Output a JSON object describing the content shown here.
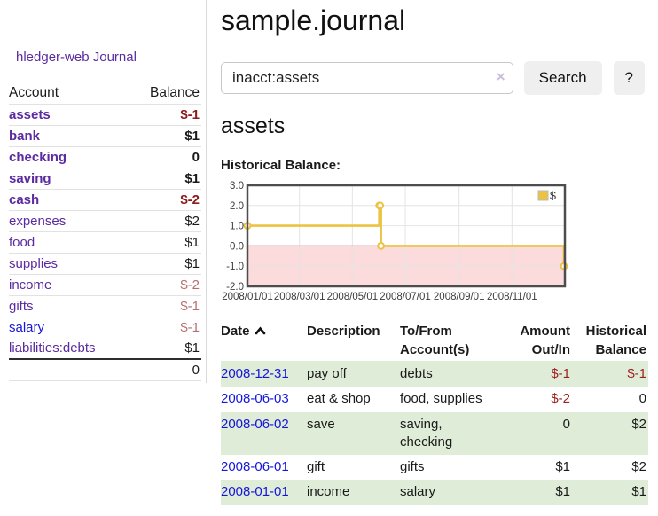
{
  "sidebar": {
    "app_title": "hledger-web",
    "nav": {
      "journal": "Journal"
    },
    "accounts_table": {
      "headers": {
        "account": "Account",
        "balance": "Balance"
      },
      "rows": [
        {
          "name": "assets",
          "indent": 1,
          "bold": true,
          "balance": "$-1",
          "color": "purple"
        },
        {
          "name": "bank",
          "indent": 2,
          "bold": true,
          "balance": "$1",
          "color": "purple"
        },
        {
          "name": "checking",
          "indent": 3,
          "bold": true,
          "balance": "0",
          "color": "purple"
        },
        {
          "name": "saving",
          "indent": 3,
          "bold": true,
          "balance": "$1",
          "color": "purple"
        },
        {
          "name": "cash",
          "indent": 2,
          "bold": true,
          "balance": "$-2",
          "color": "purple"
        },
        {
          "name": "expenses",
          "indent": 1,
          "bold": false,
          "balance": "$2",
          "color": "purple"
        },
        {
          "name": "food",
          "indent": 2,
          "bold": false,
          "balance": "$1",
          "color": "purple"
        },
        {
          "name": "supplies",
          "indent": 2,
          "bold": false,
          "balance": "$1",
          "color": "purple"
        },
        {
          "name": "income",
          "indent": 1,
          "bold": false,
          "balance": "$-2",
          "color": "purple"
        },
        {
          "name": "gifts",
          "indent": 2,
          "bold": false,
          "balance": "$-1",
          "color": "purple"
        },
        {
          "name": "salary",
          "indent": 2,
          "bold": false,
          "balance": "$-1",
          "color": "blue"
        },
        {
          "name": "liabilities:debts",
          "indent": 1,
          "bold": false,
          "balance": "$1",
          "color": "purple"
        }
      ],
      "total": "0"
    }
  },
  "header": {
    "title": "sample.journal"
  },
  "search": {
    "query": "inacct:assets",
    "clear_icon": "×",
    "button_label": "Search",
    "help_label": "?"
  },
  "account_page": {
    "heading": "assets",
    "chart_label": "Historical Balance:"
  },
  "chart_data": {
    "type": "line",
    "title": "Historical Balance",
    "legend": "$",
    "legend_position": "top-right",
    "grid": true,
    "series": [
      {
        "name": "$",
        "color": "#edc240",
        "step": true,
        "points": [
          {
            "date": "2008-01-01",
            "value": 1
          },
          {
            "date": "2008-06-01",
            "value": 2
          },
          {
            "date": "2008-06-02",
            "value": 2
          },
          {
            "date": "2008-06-03",
            "value": 0
          },
          {
            "date": "2008-12-31",
            "value": -1
          }
        ]
      }
    ],
    "x_ticks": [
      "2008/01/01",
      "2008/03/01",
      "2008/05/01",
      "2008/07/01",
      "2008/09/01",
      "2008/11/01"
    ],
    "y_ticks": [
      3.0,
      2.0,
      1.0,
      0.0,
      -1.0,
      -2.0
    ],
    "ylim": [
      -2,
      3
    ],
    "xlim": [
      "2008-01-01",
      "2009-01-01"
    ],
    "negative_region_color": "#fbdbdb",
    "zero_line_color": "#8b0000"
  },
  "register": {
    "headers": {
      "date": {
        "line1": "Date"
      },
      "description": {
        "line1": "Description"
      },
      "account": {
        "line1": "To/From",
        "line2": "Account(s)"
      },
      "amount": {
        "line1": "Amount",
        "line2": "Out/In"
      },
      "balance": {
        "line1": "Historical",
        "line2": "Balance"
      }
    },
    "rows": [
      {
        "date": "2008-12-31",
        "description": "pay off",
        "accounts": "debts",
        "amount": "$-1",
        "balance": "$-1"
      },
      {
        "date": "2008-06-03",
        "description": "eat & shop",
        "accounts": "food, supplies",
        "amount": "$-2",
        "balance": "0"
      },
      {
        "date": "2008-06-02",
        "description": "save",
        "accounts": "saving, checking",
        "amount": "0",
        "balance": "$2"
      },
      {
        "date": "2008-06-01",
        "description": "gift",
        "accounts": "gifts",
        "amount": "$1",
        "balance": "$2"
      },
      {
        "date": "2008-01-01",
        "description": "income",
        "accounts": "salary",
        "amount": "$1",
        "balance": "$1"
      }
    ]
  }
}
